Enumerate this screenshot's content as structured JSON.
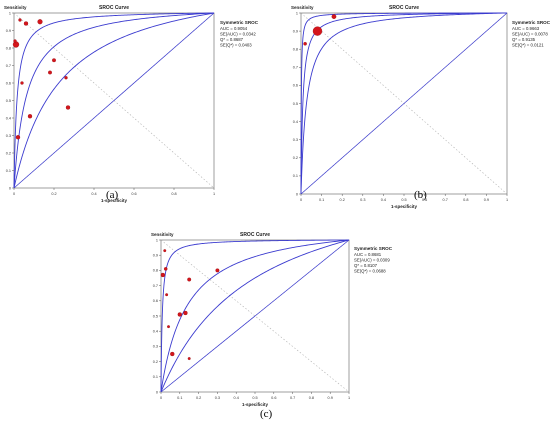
{
  "panels": [
    {
      "id": "a",
      "label": "(a)",
      "title": "SROC Curve",
      "ylabel": "Sensitivity",
      "xlabel": "1-specificity",
      "legend_title": "Symmetric SROC",
      "legend_lines": [
        "AUC = 0.9054",
        "SE(AUC) = 0.0342",
        "Q* = 0.8687",
        "SE(Q*) = 0.0403"
      ]
    },
    {
      "id": "b",
      "label": "(b)",
      "title": "SROC Curve",
      "ylabel": "Sensitivity",
      "xlabel": "1-specificity",
      "legend_title": "Symmetric SROC",
      "legend_lines": [
        "AUC = 0.9663",
        "SE(AUC) = 0.0078",
        "Q* = 0.9135",
        "SE(Q*) = 0.0121"
      ]
    },
    {
      "id": "c",
      "label": "(c)",
      "title": "SROC Curve",
      "ylabel": "Sensitivity",
      "xlabel": "1-specificity",
      "legend_title": "Symmetric SROC",
      "legend_lines": [
        "AUC = 0.8681",
        "SE(AUC) = 0.0309",
        "Q* = 0.8107",
        "SE(Q*) = 0.0688"
      ]
    }
  ],
  "chart_data": [
    {
      "type": "scatter",
      "title": "SROC Curve",
      "xlabel": "1-specificity",
      "ylabel": "Sensitivity",
      "xlim": [
        0,
        1
      ],
      "ylim": [
        0,
        1
      ],
      "ticks": [
        "0",
        "0.2",
        "0.4",
        "0.6",
        "0.8",
        "1"
      ],
      "yticks": [
        "0",
        "0.1",
        "0.2",
        "0.3",
        "0.4",
        "0.5",
        "0.6",
        "0.7",
        "0.8",
        "0.9",
        "1"
      ],
      "auc": 0.9054,
      "curve_params": [
        1.65,
        2.82,
        4.2
      ],
      "points": [
        {
          "x": 0.01,
          "y": 0.82,
          "w": 3
        },
        {
          "x": 0.005,
          "y": 0.84,
          "w": 1.5
        },
        {
          "x": 0.06,
          "y": 0.94,
          "w": 2
        },
        {
          "x": 0.13,
          "y": 0.95,
          "w": 2.4
        },
        {
          "x": 0.03,
          "y": 0.96,
          "w": 1.5
        },
        {
          "x": 0.04,
          "y": 0.6,
          "w": 1.5
        },
        {
          "x": 0.2,
          "y": 0.73,
          "w": 1.8
        },
        {
          "x": 0.26,
          "y": 0.63,
          "w": 1.5
        },
        {
          "x": 0.18,
          "y": 0.66,
          "w": 1.8
        },
        {
          "x": 0.27,
          "y": 0.46,
          "w": 2
        },
        {
          "x": 0.08,
          "y": 0.41,
          "w": 2
        },
        {
          "x": 0.02,
          "y": 0.29,
          "w": 2
        }
      ],
      "grid": true,
      "colors": {
        "curve": "#3b3bcf",
        "point": "#d4151b",
        "grid": "#b0b0b0"
      }
    },
    {
      "type": "scatter",
      "title": "SROC Curve",
      "xlabel": "1-specificity",
      "ylabel": "Sensitivity",
      "xlim": [
        0,
        1
      ],
      "ylim": [
        0,
        1
      ],
      "ticks": [
        "0",
        "0.1",
        "0.2",
        "0.3",
        "0.4",
        "0.5",
        "0.6",
        "0.7",
        "0.8",
        "0.9",
        "1"
      ],
      "yticks": [
        "0",
        "0.1",
        "0.2",
        "0.3",
        "0.4",
        "0.5",
        "0.6",
        "0.7",
        "0.8",
        "0.9",
        "1"
      ],
      "auc": 0.9663,
      "curve_params": [
        3.6,
        4.7,
        6.5
      ],
      "points": [
        {
          "x": 0.08,
          "y": 0.9,
          "w": 4.5
        },
        {
          "x": 0.16,
          "y": 0.98,
          "w": 2.2
        },
        {
          "x": 0.02,
          "y": 0.83,
          "w": 1.6
        }
      ],
      "grid": true,
      "colors": {
        "curve": "#3b3bcf",
        "point": "#d4151b",
        "grid": "#b0b0b0"
      }
    },
    {
      "type": "scatter",
      "title": "SROC Curve",
      "xlabel": "1-specificity",
      "ylabel": "Sensitivity",
      "xlim": [
        0,
        1
      ],
      "ylim": [
        0,
        1
      ],
      "ticks": [
        "0",
        "0.1",
        "0.2",
        "0.3",
        "0.4",
        "0.5",
        "0.6",
        "0.7",
        "0.8",
        "0.9",
        "1"
      ],
      "yticks": [
        "0",
        "0.1",
        "0.2",
        "0.3",
        "0.4",
        "0.5",
        "0.6",
        "0.7",
        "0.8",
        "0.9",
        "1"
      ],
      "auc": 0.8681,
      "curve_params": [
        1.1,
        2.1,
        5.0
      ],
      "points": [
        {
          "x": 0.01,
          "y": 0.77,
          "w": 2
        },
        {
          "x": 0.02,
          "y": 0.93,
          "w": 1.3
        },
        {
          "x": 0.025,
          "y": 0.81,
          "w": 1.6
        },
        {
          "x": 0.04,
          "y": 0.43,
          "w": 1.3
        },
        {
          "x": 0.03,
          "y": 0.64,
          "w": 1.3
        },
        {
          "x": 0.06,
          "y": 0.25,
          "w": 2
        },
        {
          "x": 0.1,
          "y": 0.51,
          "w": 2
        },
        {
          "x": 0.13,
          "y": 0.52,
          "w": 2
        },
        {
          "x": 0.15,
          "y": 0.22,
          "w": 1.3
        },
        {
          "x": 0.15,
          "y": 0.74,
          "w": 1.8
        },
        {
          "x": 0.3,
          "y": 0.8,
          "w": 1.8
        }
      ],
      "grid": true,
      "colors": {
        "curve": "#3b3bcf",
        "point": "#d4151b",
        "grid": "#b0b0b0"
      }
    }
  ]
}
